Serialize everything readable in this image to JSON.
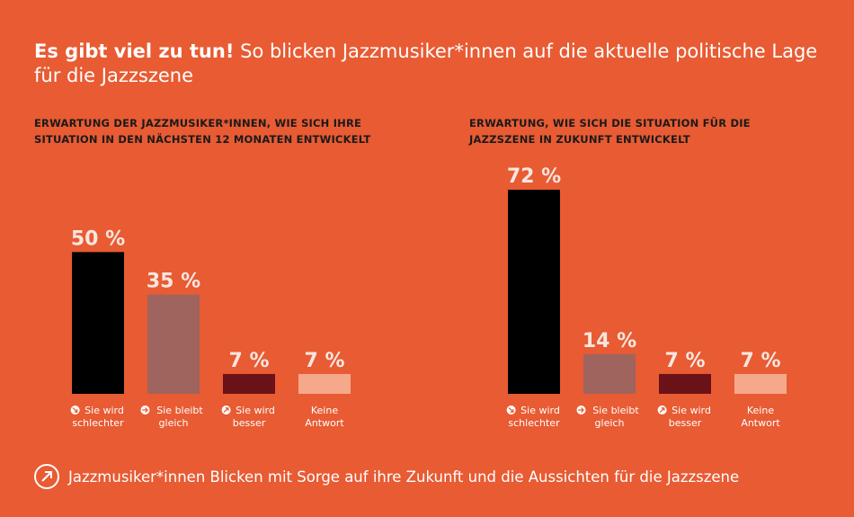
{
  "title": {
    "bold": "Es gibt viel zu tun!",
    "rest": "So blicken Jazzmusiker*innen auf die aktuelle politische Lage für die Jazzszene"
  },
  "footer": {
    "text": "Jazzmusiker*innen Blicken mit Sorge auf ihre Zukunft und die Aussichten für die Jazzszene",
    "icon": "arrow-up-right-icon"
  },
  "colors": {
    "background": "#E85B33",
    "schlechter": "#000000",
    "gleich": "#A0645E",
    "besser": "#6B1218",
    "keine": "#F6A98A"
  },
  "chart_data": [
    {
      "type": "bar",
      "title": "ERWARTUNG DER JAZZMUSIKER*INNEN, WIE SICH IHRE SITUATION IN DEN NÄCHSTEN 12 MONATEN ENTWICKELT",
      "categories": [
        "Sie wird schlechter",
        "Sie bleibt gleich",
        "Sie wird besser",
        "Keine Antwort"
      ],
      "category_lines": [
        [
          "Sie wird",
          "schlechter"
        ],
        [
          "Sie bleibt",
          "gleich"
        ],
        [
          "Sie wird",
          "besser"
        ],
        [
          "Keine",
          "Antwort"
        ]
      ],
      "values": [
        50,
        35,
        7,
        7
      ],
      "value_labels": [
        "50 %",
        "35 %",
        "7 %",
        "7 %"
      ],
      "icons": [
        "arrow-down-right-icon",
        "arrow-right-icon",
        "arrow-up-right-icon",
        ""
      ],
      "ylim": [
        0,
        100
      ]
    },
    {
      "type": "bar",
      "title": "ERWARTUNG, WIE SICH DIE SITUATION FÜR DIE JAZZSZENE IN ZUKUNFT ENTWICKELT",
      "categories": [
        "Sie wird schlechter",
        "Sie bleibt gleich",
        "Sie wird besser",
        "Keine Antwort"
      ],
      "category_lines": [
        [
          "Sie wird",
          "schlechter"
        ],
        [
          "Sie bleibt",
          "gleich"
        ],
        [
          "Sie wird",
          "besser"
        ],
        [
          "Keine",
          "Antwort"
        ]
      ],
      "values": [
        72,
        14,
        7,
        7
      ],
      "value_labels": [
        "72 %",
        "14 %",
        "7 %",
        "7 %"
      ],
      "icons": [
        "arrow-down-right-icon",
        "arrow-right-icon",
        "arrow-up-right-icon",
        ""
      ],
      "ylim": [
        0,
        100
      ]
    }
  ]
}
